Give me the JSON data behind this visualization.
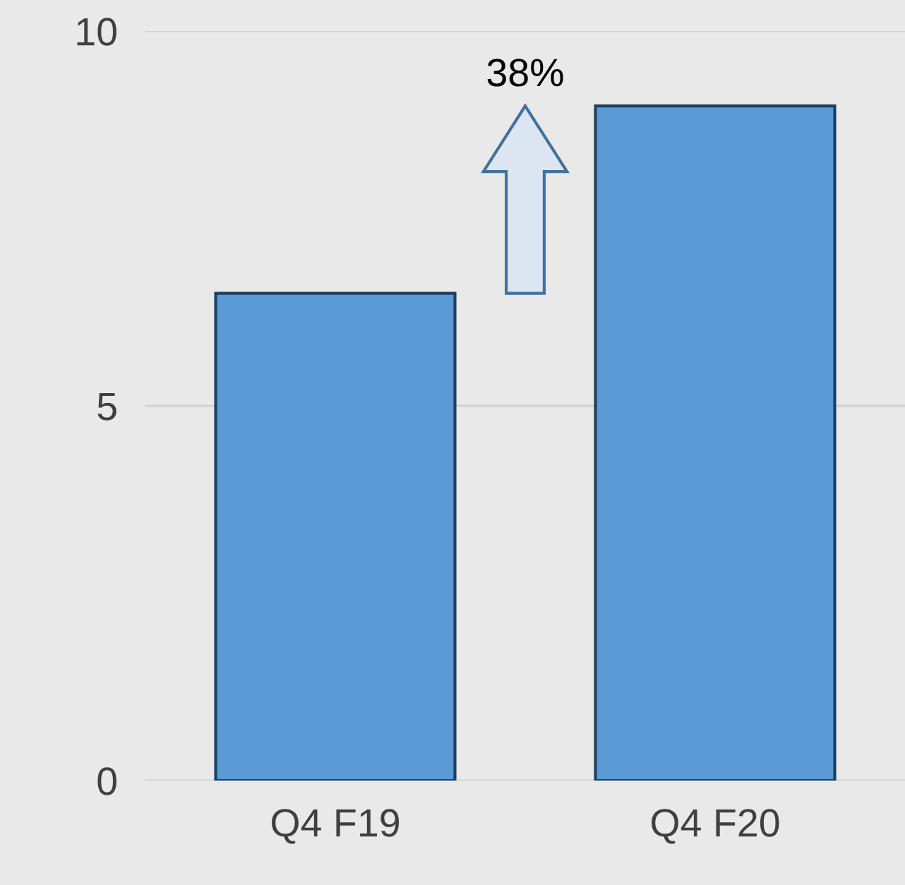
{
  "chart_data": {
    "type": "bar",
    "categories": [
      "Q4 F19",
      "Q4 F20"
    ],
    "values": [
      6.5,
      9.0
    ],
    "color": "#5b9bd5",
    "ylim": [
      0,
      10
    ],
    "yticks": [
      0,
      5,
      10
    ],
    "grid": "y",
    "annotations": [
      "38%"
    ]
  }
}
